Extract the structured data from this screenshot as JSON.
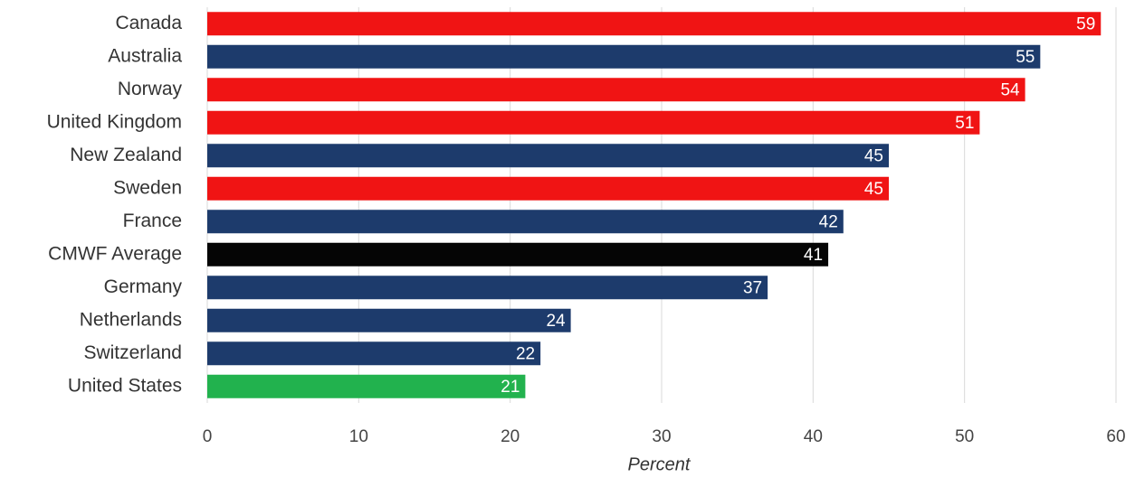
{
  "chart_data": {
    "type": "hbar",
    "categories": [
      "Canada",
      "Australia",
      "Norway",
      "United Kingdom",
      "New Zealand",
      "Sweden",
      "France",
      "CMWF Average",
      "Germany",
      "Netherlands",
      "Switzerland",
      "United States"
    ],
    "values": [
      59,
      55,
      54,
      51,
      45,
      45,
      42,
      41,
      37,
      24,
      22,
      21
    ],
    "colors": [
      "#f01414",
      "#1d3b6c",
      "#f01414",
      "#f01414",
      "#1d3b6c",
      "#f01414",
      "#1d3b6c",
      "#050505",
      "#1d3b6c",
      "#1d3b6c",
      "#1d3b6c",
      "#22b24e"
    ],
    "xlim": [
      0,
      60
    ],
    "xticks": [
      0,
      10,
      20,
      30,
      40,
      50,
      60
    ],
    "xlabel": "Percent",
    "grid": true
  }
}
